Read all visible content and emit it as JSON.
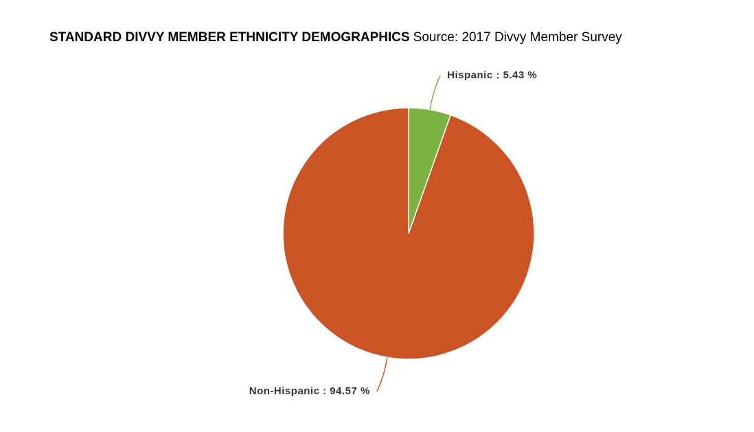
{
  "chart_data": {
    "type": "pie",
    "title": "STANDARD DIVVY MEMBER ETHNICITY DEMOGRAPHICS",
    "subtitle": "Source: 2017 Divvy Member Survey",
    "values": [
      5.43,
      94.57
    ],
    "value_labels": [
      "Hispanic : 5.43 %",
      "Non-Hispanic : 94.57 %"
    ],
    "colors": [
      "#7ab342",
      "#cc5424"
    ]
  }
}
